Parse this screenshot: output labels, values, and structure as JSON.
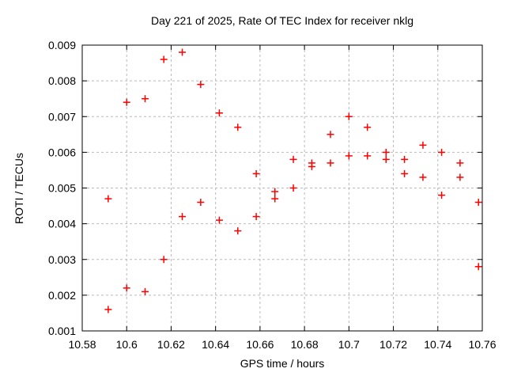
{
  "window": {
    "background": "#ffffff"
  },
  "chart": {
    "title": "Day 221 of 2025, Rate Of TEC Index for receiver nklg",
    "xlabel": "GPS time / hours",
    "ylabel": "ROTI / TECUs"
  },
  "chart_data": {
    "type": "scatter",
    "title": "Day 221 of 2025, Rate Of TEC Index for receiver nklg",
    "xlabel": "GPS time / hours",
    "ylabel": "ROTI / TECUs",
    "xlim": [
      10.58,
      10.76
    ],
    "ylim": [
      0.001,
      0.009
    ],
    "grid": true,
    "legend_position": "none",
    "marker": {
      "shape": "plus",
      "color": "#ff0000",
      "size": 9
    },
    "xticks": {
      "values": [
        10.58,
        10.6,
        10.62,
        10.64,
        10.66,
        10.68,
        10.7,
        10.72,
        10.74,
        10.76
      ],
      "labels": [
        "10.58",
        "10.6",
        "10.62",
        "10.64",
        "10.66",
        "10.68",
        "10.7",
        "10.72",
        "10.74",
        "10.76"
      ]
    },
    "yticks": {
      "values": [
        0.001,
        0.002,
        0.003,
        0.004,
        0.005,
        0.006,
        0.007,
        0.008,
        0.009
      ],
      "labels": [
        "0.001",
        "0.002",
        "0.003",
        "0.004",
        "0.005",
        "0.006",
        "0.007",
        "0.008",
        "0.009"
      ]
    },
    "series": [
      {
        "name": "ROTI",
        "points": [
          [
            10.5917,
            0.0047
          ],
          [
            10.5917,
            0.0016
          ],
          [
            10.6,
            0.0074
          ],
          [
            10.6,
            0.0022
          ],
          [
            10.6083,
            0.0075
          ],
          [
            10.6083,
            0.0021
          ],
          [
            10.6167,
            0.0086
          ],
          [
            10.6167,
            0.003
          ],
          [
            10.625,
            0.0088
          ],
          [
            10.625,
            0.0042
          ],
          [
            10.6333,
            0.0079
          ],
          [
            10.6333,
            0.0046
          ],
          [
            10.6417,
            0.0071
          ],
          [
            10.6417,
            0.0041
          ],
          [
            10.65,
            0.0067
          ],
          [
            10.65,
            0.0038
          ],
          [
            10.6583,
            0.0054
          ],
          [
            10.6583,
            0.0042
          ],
          [
            10.6667,
            0.0049
          ],
          [
            10.6667,
            0.0047
          ],
          [
            10.675,
            0.0058
          ],
          [
            10.675,
            0.005
          ],
          [
            10.6833,
            0.0057
          ],
          [
            10.6833,
            0.0056
          ],
          [
            10.6917,
            0.0065
          ],
          [
            10.6917,
            0.0057
          ],
          [
            10.7,
            0.007
          ],
          [
            10.7,
            0.0059
          ],
          [
            10.7083,
            0.0067
          ],
          [
            10.7083,
            0.0059
          ],
          [
            10.7167,
            0.006
          ],
          [
            10.7167,
            0.0058
          ],
          [
            10.725,
            0.0058
          ],
          [
            10.725,
            0.0054
          ],
          [
            10.7333,
            0.0062
          ],
          [
            10.7333,
            0.0053
          ],
          [
            10.7417,
            0.006
          ],
          [
            10.7417,
            0.0048
          ],
          [
            10.75,
            0.0057
          ],
          [
            10.75,
            0.0053
          ],
          [
            10.7583,
            0.0046
          ],
          [
            10.7583,
            0.0028
          ]
        ]
      }
    ]
  },
  "colors": {
    "background": "#ffffff",
    "axis": "#000000",
    "grid": "#b9b9b9",
    "marker": "#ff0000",
    "text": "#000000"
  }
}
